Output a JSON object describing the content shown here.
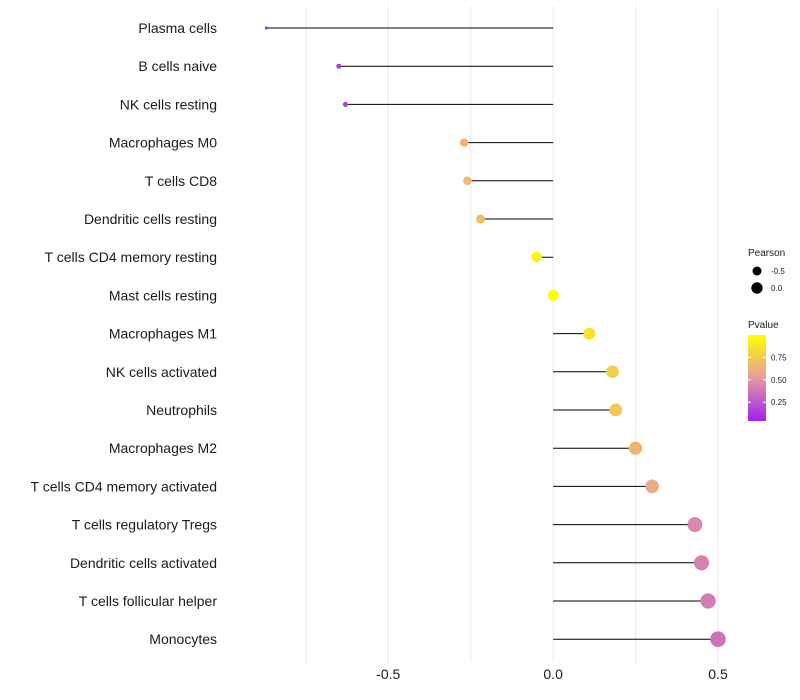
{
  "chart_data": {
    "type": "lollipop",
    "title": "",
    "xlabel": "",
    "ylabel": "",
    "xlim": [
      -0.98,
      0.5
    ],
    "x_ticks": [
      -0.5,
      0.0,
      0.5
    ],
    "x_tick_labels": [
      "-0.5",
      "0.0",
      "0.5"
    ],
    "grid": "vertical",
    "series": [
      {
        "label": "Plasma cells",
        "pearson": -0.87,
        "pvalue": 0.04
      },
      {
        "label": "B cells naive",
        "pearson": -0.65,
        "pvalue": 0.15
      },
      {
        "label": "NK cells resting",
        "pearson": -0.63,
        "pvalue": 0.18
      },
      {
        "label": "Macrophages M0",
        "pearson": -0.27,
        "pvalue": 0.66
      },
      {
        "label": "T cells CD8",
        "pearson": -0.26,
        "pvalue": 0.67
      },
      {
        "label": "Dendritic cells resting",
        "pearson": -0.22,
        "pvalue": 0.7
      },
      {
        "label": "T cells CD4 memory resting",
        "pearson": -0.05,
        "pvalue": 0.95
      },
      {
        "label": "Mast cells resting",
        "pearson": 0.0,
        "pvalue": 1.0
      },
      {
        "label": "Macrophages M1",
        "pearson": 0.11,
        "pvalue": 0.87
      },
      {
        "label": "NK cells activated",
        "pearson": 0.18,
        "pvalue": 0.76
      },
      {
        "label": "Neutrophils",
        "pearson": 0.19,
        "pvalue": 0.74
      },
      {
        "label": "Macrophages M2",
        "pearson": 0.25,
        "pvalue": 0.66
      },
      {
        "label": "T cells CD4 memory activated",
        "pearson": 0.3,
        "pvalue": 0.6
      },
      {
        "label": "T cells regulatory  Tregs",
        "pearson": 0.43,
        "pvalue": 0.44
      },
      {
        "label": "Dendritic cells activated",
        "pearson": 0.45,
        "pvalue": 0.42
      },
      {
        "label": "T cells follicular helper",
        "pearson": 0.47,
        "pvalue": 0.4
      },
      {
        "label": "Monocytes",
        "pearson": 0.5,
        "pvalue": 0.36
      }
    ],
    "legend": {
      "placement": "right",
      "size_title": "Pearson",
      "size_items": [
        {
          "label": "-0.5",
          "value": -0.5
        },
        {
          "label": "0.0",
          "value": 0.0
        }
      ],
      "color_title": "Pvalue",
      "color_ticks": [
        {
          "label": "0.75",
          "value": 0.75
        },
        {
          "label": "0.50",
          "value": 0.5
        },
        {
          "label": "0.25",
          "value": 0.25
        }
      ],
      "color_range": [
        0.04,
        1.0
      ],
      "color_low": "#a020f0",
      "color_mid": "#e69aa0",
      "color_high": "#ffff00"
    }
  }
}
